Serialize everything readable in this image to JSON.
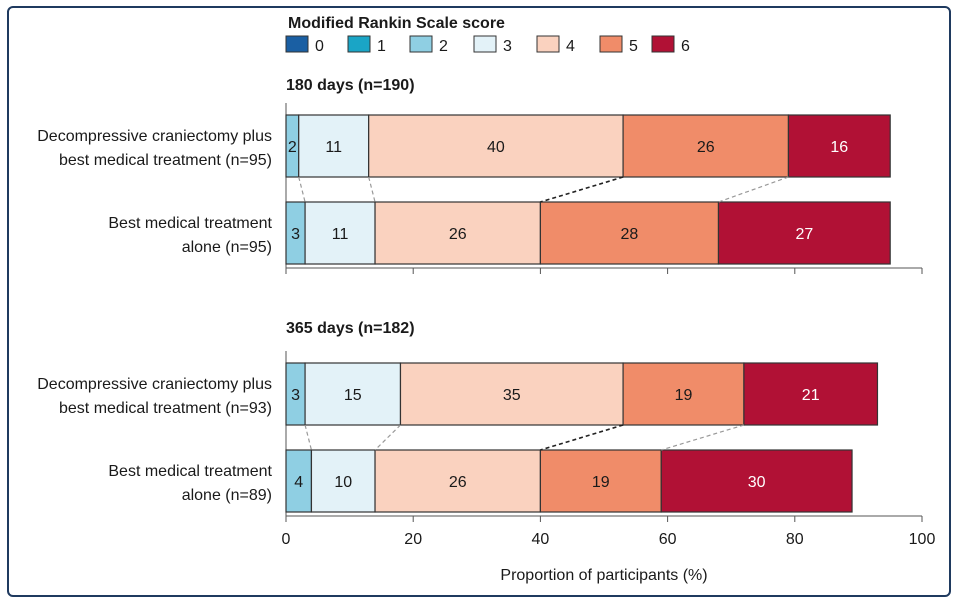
{
  "chart_data": {
    "type": "bar",
    "orientation": "horizontal",
    "stacked": true,
    "legend_title": "Modified Rankin Scale score",
    "legend_labels": [
      "0",
      "1",
      "2",
      "3",
      "4",
      "5",
      "6"
    ],
    "colors": [
      "#1a5fa3",
      "#1aa5c6",
      "#8fcfe3",
      "#e3f2f8",
      "#fad2bf",
      "#f08c69",
      "#b11135"
    ],
    "xlabel": "Proportion of participants (%)",
    "xlim": [
      0,
      100
    ],
    "xticks": [
      "0",
      "20",
      "40",
      "60",
      "80",
      "100"
    ],
    "panels": [
      {
        "title": "180 days (n=190)",
        "rows": [
          {
            "label_line1": "Decompressive craniectomy plus",
            "label_line2": "best medical treatment (n=95)",
            "values": [
              0,
              0,
              2,
              11,
              40,
              26,
              16
            ],
            "labels": [
              "",
              "",
              "2",
              "11",
              "40",
              "26",
              "16"
            ]
          },
          {
            "label_line1": "Best medical treatment",
            "label_line2": "alone (n=95)",
            "values": [
              0,
              0,
              3,
              11,
              26,
              28,
              27
            ],
            "labels": [
              "",
              "",
              "3",
              "11",
              "26",
              "28",
              "27"
            ]
          }
        ]
      },
      {
        "title": "365 days (n=182)",
        "rows": [
          {
            "label_line1": "Decompressive craniectomy plus",
            "label_line2": "best medical treatment (n=93)",
            "values": [
              0,
              0,
              3,
              15,
              35,
              19,
              21
            ],
            "labels": [
              "",
              "",
              "3",
              "15",
              "35",
              "19",
              "21"
            ]
          },
          {
            "label_line1": "Best medical treatment",
            "label_line2": "alone (n=89)",
            "values": [
              0,
              0,
              4,
              10,
              26,
              19,
              30
            ],
            "labels": [
              "",
              "",
              "4",
              "10",
              "26",
              "19",
              "30"
            ]
          }
        ]
      }
    ]
  }
}
